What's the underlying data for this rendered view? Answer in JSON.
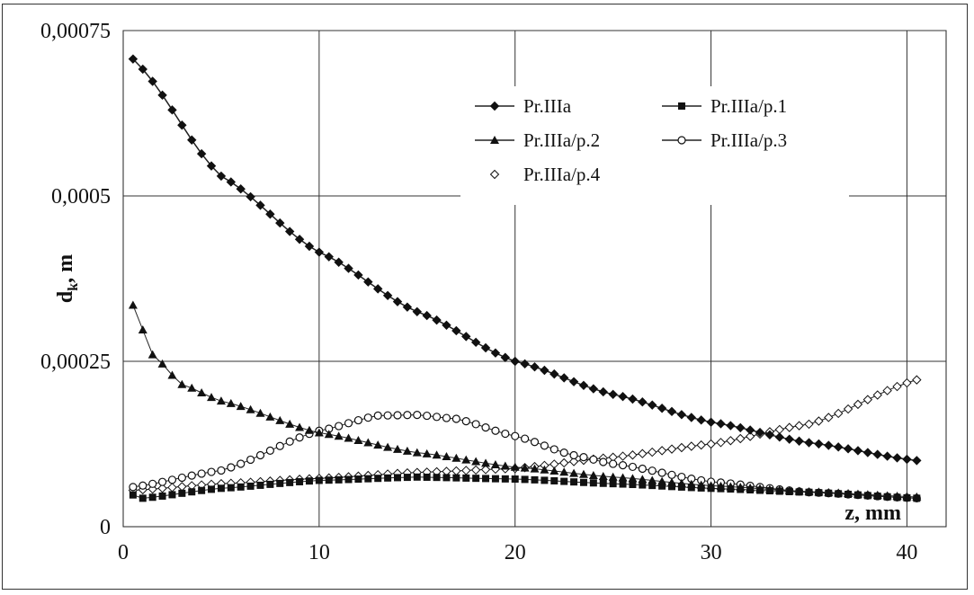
{
  "chart_data": {
    "type": "line",
    "title": "",
    "xlabel": "z, mm",
    "ylabel": "d",
    "ylabel_sub": "k",
    "ylabel_suffix": ", m",
    "xlim": [
      0,
      42
    ],
    "ylim": [
      0,
      0.00075
    ],
    "x_ticks": [
      0,
      10,
      20,
      30,
      40
    ],
    "x_tick_labels": [
      "0",
      "10",
      "20",
      "30",
      "40"
    ],
    "y_ticks": [
      0,
      0.00025,
      0.0005,
      0.00075
    ],
    "y_tick_labels": [
      "0",
      "0,00025",
      "0,0005",
      "0,00075"
    ],
    "grid": true,
    "legend_position": "top-center",
    "x_start": 0.5,
    "x_end": 40.5,
    "x_step": 0.5,
    "series": [
      {
        "name": "Pr.IIIa",
        "marker": "diamond-filled",
        "curve_points": [
          [
            0.5,
            0.000707
          ],
          [
            5,
            0.00053
          ],
          [
            10,
            0.000415
          ],
          [
            15,
            0.000325
          ],
          [
            20,
            0.00025
          ],
          [
            25,
            0.0002
          ],
          [
            30,
            0.000158
          ],
          [
            35,
            0.000127
          ],
          [
            40.5,
            0.0001
          ]
        ]
      },
      {
        "name": "Pr.IIIa/p.1",
        "marker": "square-filled",
        "curve_points": [
          [
            0.5,
            4.8e-05
          ],
          [
            1,
            4.3e-05
          ],
          [
            5,
            5.8e-05
          ],
          [
            10,
            7e-05
          ],
          [
            15,
            7.5e-05
          ],
          [
            20,
            7.2e-05
          ],
          [
            25,
            6.5e-05
          ],
          [
            30,
            5.8e-05
          ],
          [
            35,
            5.2e-05
          ],
          [
            40.5,
            4.3e-05
          ]
        ]
      },
      {
        "name": "Pr.IIIa/p.2",
        "marker": "triangle-filled",
        "curve_points": [
          [
            0.5,
            0.000335
          ],
          [
            1.5,
            0.00026
          ],
          [
            3,
            0.000215
          ],
          [
            5,
            0.00019
          ],
          [
            10,
            0.000142
          ],
          [
            15,
            0.000112
          ],
          [
            20,
            9e-05
          ],
          [
            25,
            7.5e-05
          ],
          [
            30,
            6.2e-05
          ],
          [
            35,
            5.3e-05
          ],
          [
            40.5,
            4.5e-05
          ]
        ]
      },
      {
        "name": "Pr.IIIa/p.3",
        "marker": "circle-open",
        "curve_points": [
          [
            0.5,
            6e-05
          ],
          [
            5,
            8.5e-05
          ],
          [
            10,
            0.000145
          ],
          [
            13,
            0.000168
          ],
          [
            15,
            0.000169
          ],
          [
            17,
            0.000163
          ],
          [
            20,
            0.000137
          ],
          [
            23,
            0.000108
          ],
          [
            25,
            9.5e-05
          ],
          [
            30,
            6.8e-05
          ],
          [
            35,
            5.2e-05
          ],
          [
            40.5,
            4.3e-05
          ]
        ]
      },
      {
        "name": "Pr.IIIa/p.4",
        "marker": "diamond-open",
        "curve_points": [
          [
            0.5,
            5.5e-05
          ],
          [
            5,
            6.5e-05
          ],
          [
            10,
            7.3e-05
          ],
          [
            15,
            8.2e-05
          ],
          [
            20,
            8.8e-05
          ],
          [
            25,
            0.000105
          ],
          [
            30,
            0.000125
          ],
          [
            35,
            0.000155
          ],
          [
            40.5,
            0.000222
          ]
        ]
      }
    ]
  }
}
